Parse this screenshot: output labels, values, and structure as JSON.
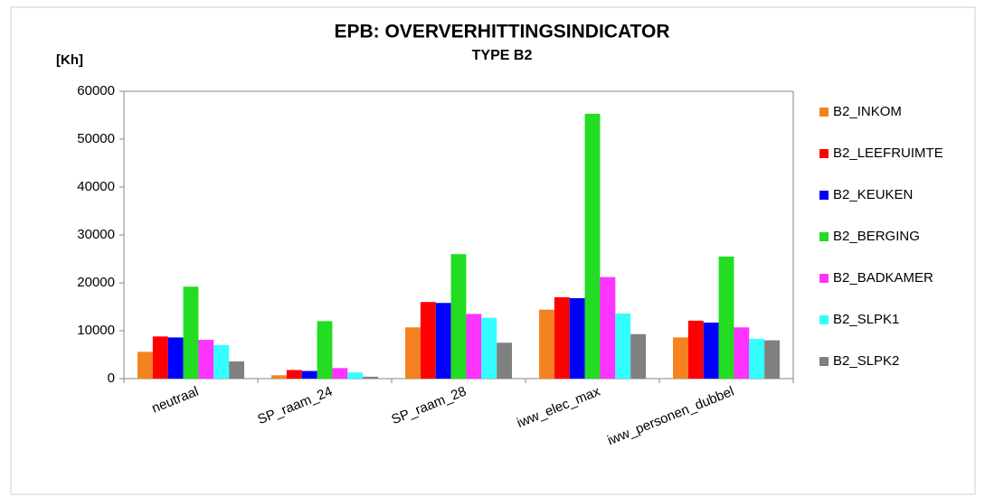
{
  "chart_data": {
    "type": "bar",
    "title": "EPB: OVERVERHITTINGSINDICATOR",
    "subtitle": "TYPE B2",
    "y_label": "[Kh]",
    "categories": [
      "neutraal",
      "SP_raam_24",
      "SP_raam_28",
      "iww_elec_max",
      "iww_personen_dubbel"
    ],
    "series": [
      {
        "name": "B2_INKOM",
        "color": "#f58220",
        "values": [
          5600,
          700,
          10700,
          14400,
          8600
        ]
      },
      {
        "name": "B2_LEEFRUIMTE",
        "color": "#ff0000",
        "values": [
          8800,
          1800,
          16000,
          17000,
          12100
        ]
      },
      {
        "name": "B2_KEUKEN",
        "color": "#0000ff",
        "values": [
          8600,
          1600,
          15800,
          16800,
          11700
        ]
      },
      {
        "name": "B2_BERGING",
        "color": "#22dd22",
        "values": [
          19200,
          12000,
          26000,
          55300,
          25500
        ]
      },
      {
        "name": "B2_BADKAMER",
        "color": "#ff33ff",
        "values": [
          8100,
          2200,
          13500,
          21200,
          10700
        ]
      },
      {
        "name": "B2_SLPK1",
        "color": "#33ffff",
        "values": [
          7000,
          1300,
          12700,
          13600,
          8300
        ]
      },
      {
        "name": "B2_SLPK2",
        "color": "#808080",
        "values": [
          3600,
          400,
          7500,
          9300,
          8000
        ]
      }
    ],
    "ylim": [
      0,
      60000
    ],
    "yticks": [
      0,
      10000,
      20000,
      30000,
      40000,
      50000,
      60000
    ],
    "grid": false,
    "legend": "right"
  }
}
